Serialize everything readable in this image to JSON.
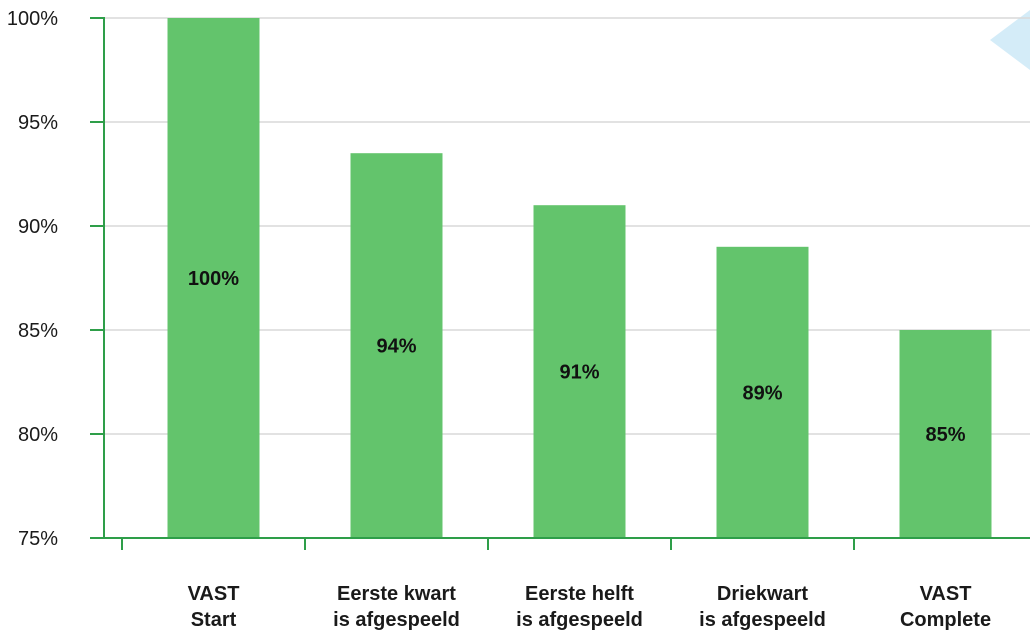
{
  "chart_data": {
    "type": "bar",
    "categories": [
      [
        "VAST",
        "Start"
      ],
      [
        "Eerste kwart",
        "is afgespeeld"
      ],
      [
        "Eerste helft",
        "is afgespeeld"
      ],
      [
        "Driekwart",
        "is afgespeeld"
      ],
      [
        "VAST",
        "Complete"
      ]
    ],
    "values": [
      100,
      93.5,
      91,
      89,
      85
    ],
    "value_labels": [
      "100%",
      "94%",
      "91%",
      "89%",
      "85%"
    ],
    "ylim": [
      75,
      100
    ],
    "yticks": [
      75,
      80,
      85,
      90,
      95,
      100
    ],
    "ytick_labels": [
      "75%",
      "80%",
      "85%",
      "90%",
      "95%",
      "100%"
    ],
    "grid": true,
    "colors": {
      "bar": "#63c46c",
      "axis": "#2e9e49",
      "grid": "#d9d9d9",
      "accent_shape": "#d4ecf8"
    }
  }
}
